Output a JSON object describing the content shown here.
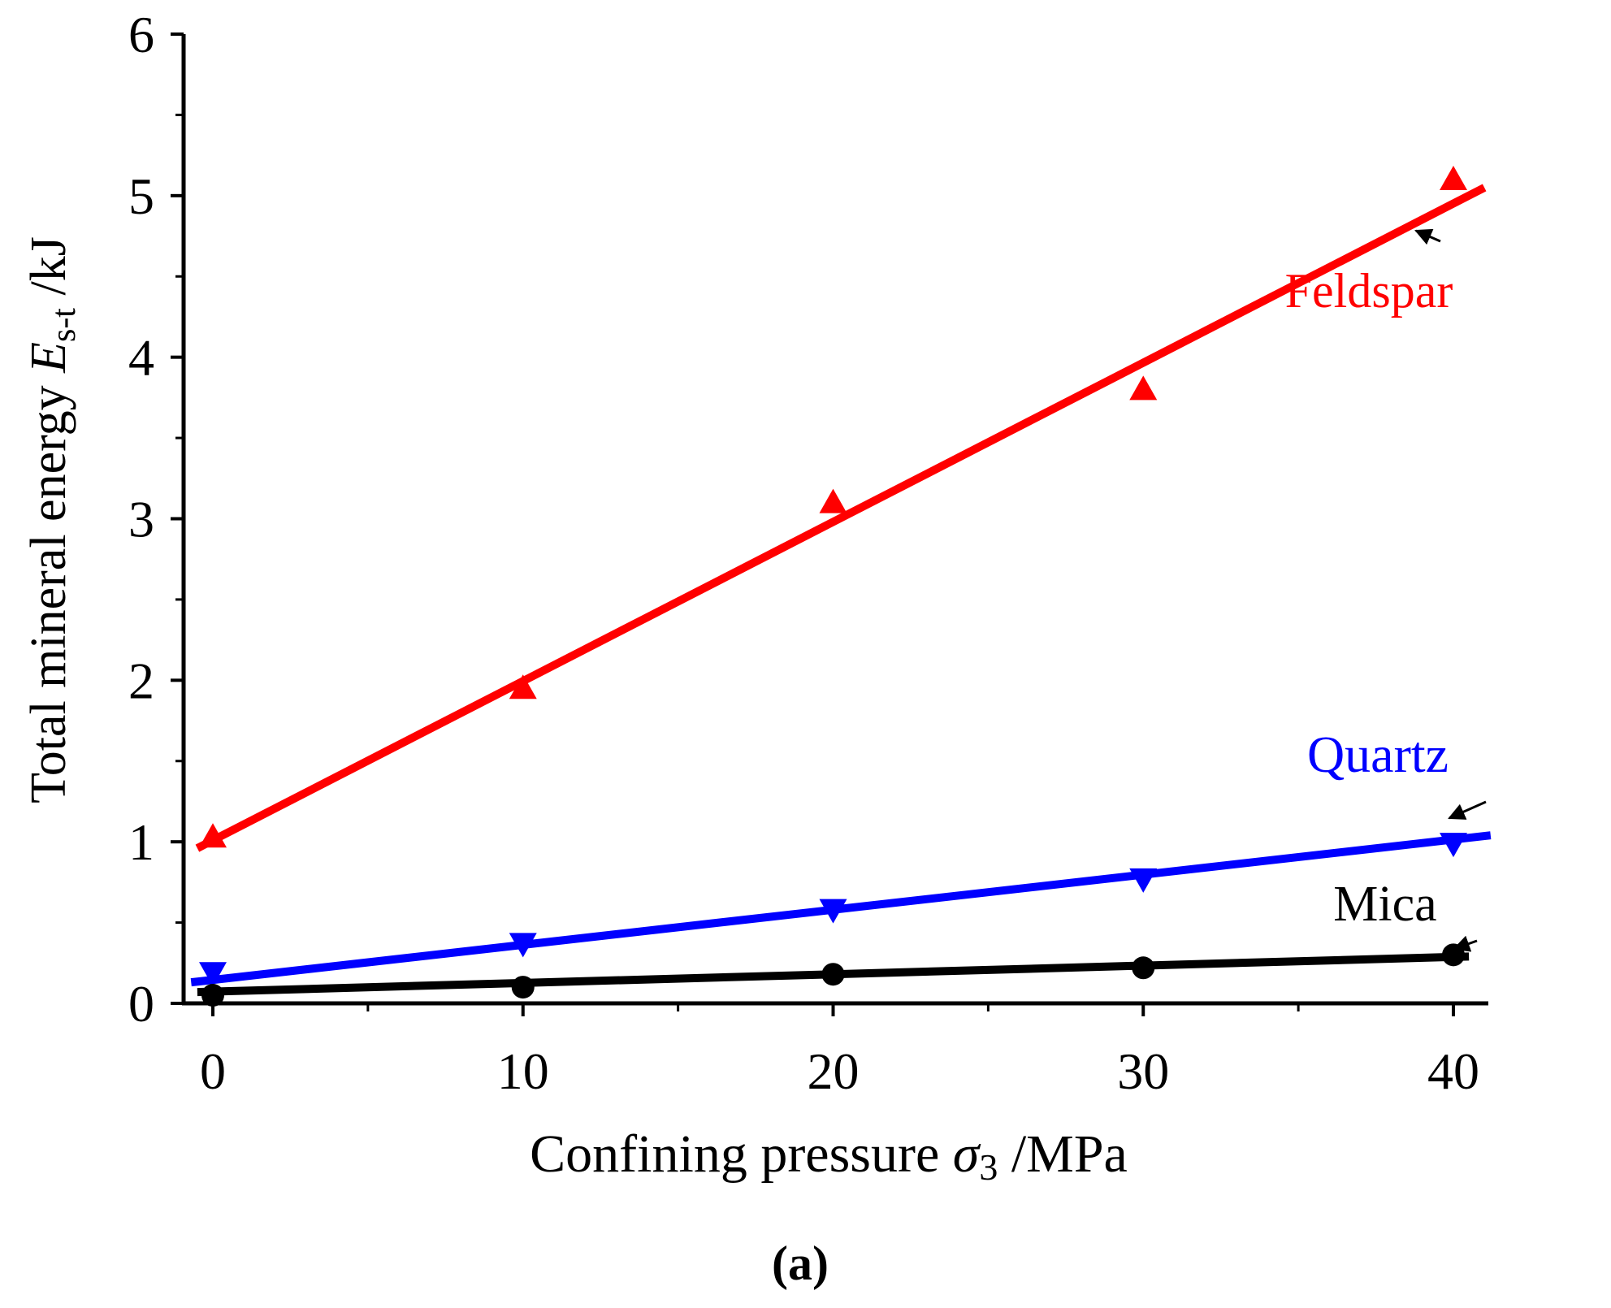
{
  "chart_data": {
    "type": "scatter",
    "title": "",
    "xlabel": {
      "prefix": "Confining pressure ",
      "symbol": "σ",
      "subscript": "3",
      "suffix": " /MPa"
    },
    "ylabel": {
      "prefix": "Total mineral energy ",
      "symbol": "E",
      "subscript": "s-t",
      "suffix": " /kJ"
    },
    "xlim": [
      -1,
      41
    ],
    "ylim": [
      0,
      6
    ],
    "x_ticks": [
      0,
      10,
      20,
      30,
      40
    ],
    "x_tick_labels": [
      "0",
      "10",
      "20",
      "30",
      "40"
    ],
    "x_minor_ticks": [
      5,
      15,
      25,
      35
    ],
    "y_ticks": [
      0,
      1,
      2,
      3,
      4,
      5,
      6
    ],
    "y_tick_labels": [
      "0",
      "1",
      "2",
      "3",
      "4",
      "5",
      "6"
    ],
    "y_minor_ticks": [
      0.5,
      1.5,
      2.5,
      3.5,
      4.5,
      5.5
    ],
    "grid": false,
    "caption": "(a)",
    "series": [
      {
        "name": "Feldspar",
        "color": "#ff0000",
        "marker": "triangle-up",
        "x": [
          0,
          10,
          20,
          30,
          40
        ],
        "values": [
          1.03,
          1.95,
          3.1,
          3.8,
          5.1
        ],
        "fit": {
          "x": [
            -0.5,
            41
          ],
          "y": [
            0.96,
            5.05
          ]
        }
      },
      {
        "name": "Quartz",
        "color": "#0000ff",
        "marker": "triangle-down",
        "x": [
          0,
          10,
          20,
          30,
          40
        ],
        "values": [
          0.19,
          0.37,
          0.58,
          0.77,
          0.99
        ],
        "fit": {
          "x": [
            -0.7,
            41.2
          ],
          "y": [
            0.13,
            1.04
          ]
        }
      },
      {
        "name": "Mica",
        "color": "#000000",
        "marker": "circle",
        "x": [
          0,
          10,
          20,
          30,
          40
        ],
        "values": [
          0.05,
          0.1,
          0.18,
          0.22,
          0.3
        ],
        "fit": {
          "x": [
            -0.5,
            40.5
          ],
          "y": [
            0.07,
            0.29
          ]
        }
      }
    ],
    "annotations": [
      {
        "label": "Feldspar",
        "color": "#ff0000",
        "series": "Feldspar"
      },
      {
        "label": "Quartz",
        "color": "#0000ff",
        "series": "Quartz"
      },
      {
        "label": "Mica",
        "color": "#000000",
        "series": "Mica"
      }
    ]
  }
}
